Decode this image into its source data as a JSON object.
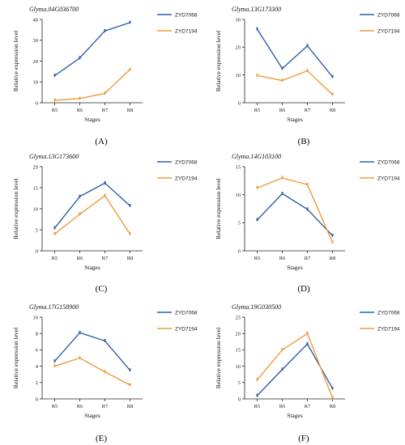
{
  "colors": {
    "ZYD7068": "#2f5fa8",
    "ZYD7194": "#ef9a3a",
    "axis": "#222222"
  },
  "legend_labels": [
    "ZYD7068",
    "ZYD7194"
  ],
  "chart_data": [
    {
      "panel": "(A)",
      "type": "line",
      "title": "Glyma.04G036700",
      "xlabel": "Stages",
      "ylabel": "Relative expression level",
      "categories": [
        "R5",
        "R6",
        "R7",
        "R8"
      ],
      "ylim": [
        0,
        40
      ],
      "yticks": [
        0,
        10,
        20,
        30,
        40
      ],
      "series": [
        {
          "name": "ZYD7068",
          "values": [
            13,
            21.5,
            34.5,
            38.5
          ]
        },
        {
          "name": "ZYD7194",
          "values": [
            1.2,
            2,
            4.5,
            16
          ]
        }
      ]
    },
    {
      "panel": "(B)",
      "type": "line",
      "title": "Glyma.13G173300",
      "xlabel": "Stages",
      "ylabel": "Relative expression level",
      "categories": [
        "R5",
        "R6",
        "R7",
        "R8"
      ],
      "ylim": [
        0,
        30
      ],
      "yticks": [
        0,
        10,
        20,
        30
      ],
      "series": [
        {
          "name": "ZYD7068",
          "values": [
            26.5,
            12.3,
            20.5,
            9.3
          ]
        },
        {
          "name": "ZYD7194",
          "values": [
            9.8,
            8,
            11.5,
            3
          ]
        }
      ]
    },
    {
      "panel": "(C)",
      "type": "line",
      "title": "Glyma.13G173600",
      "xlabel": "Stages",
      "ylabel": "Relative expression level",
      "categories": [
        "R5",
        "R6",
        "R7",
        "R8"
      ],
      "ylim": [
        0,
        20
      ],
      "yticks": [
        0,
        5,
        10,
        15,
        20
      ],
      "series": [
        {
          "name": "ZYD7068",
          "values": [
            5.4,
            12.9,
            16.1,
            10.7
          ]
        },
        {
          "name": "ZYD7194",
          "values": [
            4,
            8.7,
            13.1,
            4
          ]
        }
      ]
    },
    {
      "panel": "(D)",
      "type": "line",
      "title": "Glyma.14G103100",
      "xlabel": "Stages",
      "ylabel": "Relative expression level",
      "categories": [
        "R5",
        "R6",
        "R7",
        "R8"
      ],
      "ylim": [
        0,
        15
      ],
      "yticks": [
        0,
        5,
        10,
        15
      ],
      "series": [
        {
          "name": "ZYD7068",
          "values": [
            5.5,
            10.2,
            7.4,
            2.7
          ]
        },
        {
          "name": "ZYD7194",
          "values": [
            11.2,
            13,
            11.8,
            1.5
          ]
        }
      ]
    },
    {
      "panel": "(E)",
      "type": "line",
      "title": "Glyma.17G158900",
      "xlabel": "Stages",
      "ylabel": "Relative expression level",
      "categories": [
        "R5",
        "R6",
        "R7",
        "R8"
      ],
      "ylim": [
        0,
        10
      ],
      "yticks": [
        0,
        2,
        4,
        6,
        8,
        10
      ],
      "series": [
        {
          "name": "ZYD7068",
          "values": [
            4.6,
            8.1,
            7.1,
            3.5
          ]
        },
        {
          "name": "ZYD7194",
          "values": [
            4,
            5,
            3.3,
            1.7
          ]
        }
      ]
    },
    {
      "panel": "(F)",
      "type": "line",
      "title": "Glyma.19G030500",
      "xlabel": "Stages",
      "ylabel": "Relative expression level",
      "categories": [
        "R5",
        "R6",
        "R7",
        "R8"
      ],
      "ylim": [
        0,
        25
      ],
      "yticks": [
        0,
        5,
        10,
        15,
        20,
        25
      ],
      "series": [
        {
          "name": "ZYD7068",
          "values": [
            1,
            9,
            16.8,
            3.2
          ]
        },
        {
          "name": "ZYD7194",
          "values": [
            5.8,
            15,
            20,
            0.3
          ]
        }
      ]
    }
  ]
}
